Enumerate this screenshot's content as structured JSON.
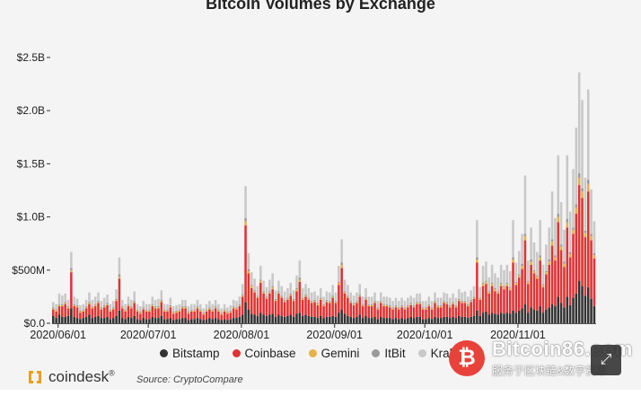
{
  "chart_data": {
    "type": "bar",
    "stacked": true,
    "title": "Bitcoin Volumes by Exchange",
    "ylabel": "",
    "xlabel": "",
    "ylim": [
      0,
      2.5
    ],
    "y_unit": "B",
    "y_ticks": [
      {
        "value": 0,
        "label": "$0.0"
      },
      {
        "value": 0.5,
        "label": "$500M"
      },
      {
        "value": 1.0,
        "label": "$1.0B"
      },
      {
        "value": 1.5,
        "label": "$1.5B"
      },
      {
        "value": 2.0,
        "label": "$2.0B"
      },
      {
        "value": 2.5,
        "label": "$2.5B"
      }
    ],
    "x_ticks": [
      {
        "day": 0,
        "label": "2020/06/01"
      },
      {
        "day": 30,
        "label": "2020/07/01"
      },
      {
        "day": 61,
        "label": "2020/08/01"
      },
      {
        "day": 92,
        "label": "2020/09/01"
      },
      {
        "day": 122,
        "label": "2020/10/01"
      },
      {
        "day": 153,
        "label": "2020/11/01"
      }
    ],
    "x_start_date": "2020-05-30",
    "legend_position": "bottom",
    "series": [
      {
        "name": "Bitstamp",
        "color": "#333333",
        "values": [
          0.07,
          0.05,
          0.08,
          0.06,
          0.06,
          0.07,
          0.14,
          0.06,
          0.05,
          0.04,
          0.05,
          0.06,
          0.08,
          0.05,
          0.06,
          0.07,
          0.05,
          0.05,
          0.06,
          0.04,
          0.05,
          0.07,
          0.12,
          0.05,
          0.04,
          0.06,
          0.05,
          0.07,
          0.04,
          0.03,
          0.05,
          0.04,
          0.04,
          0.06,
          0.05,
          0.05,
          0.07,
          0.04,
          0.04,
          0.05,
          0.03,
          0.04,
          0.04,
          0.05,
          0.05,
          0.03,
          0.04,
          0.04,
          0.05,
          0.04,
          0.03,
          0.04,
          0.05,
          0.04,
          0.05,
          0.04,
          0.03,
          0.04,
          0.03,
          0.04,
          0.05,
          0.05,
          0.06,
          0.08,
          0.2,
          0.13,
          0.09,
          0.08,
          0.07,
          0.1,
          0.08,
          0.07,
          0.08,
          0.09,
          0.06,
          0.08,
          0.07,
          0.06,
          0.07,
          0.08,
          0.06,
          0.09,
          0.1,
          0.07,
          0.08,
          0.07,
          0.06,
          0.06,
          0.05,
          0.07,
          0.05,
          0.06,
          0.06,
          0.07,
          0.06,
          0.1,
          0.13,
          0.09,
          0.07,
          0.06,
          0.05,
          0.06,
          0.08,
          0.05,
          0.07,
          0.05,
          0.05,
          0.06,
          0.04,
          0.06,
          0.05,
          0.05,
          0.05,
          0.04,
          0.05,
          0.04,
          0.05,
          0.04,
          0.05,
          0.06,
          0.05,
          0.06,
          0.06,
          0.04,
          0.04,
          0.05,
          0.04,
          0.06,
          0.05,
          0.05,
          0.06,
          0.06,
          0.05,
          0.06,
          0.05,
          0.07,
          0.06,
          0.06,
          0.05,
          0.06,
          0.07,
          0.12,
          0.07,
          0.1,
          0.11,
          0.08,
          0.1,
          0.09,
          0.08,
          0.1,
          0.09,
          0.1,
          0.09,
          0.12,
          0.1,
          0.12,
          0.14,
          0.18,
          0.1,
          0.15,
          0.13,
          0.12,
          0.16,
          0.1,
          0.13,
          0.15,
          0.18,
          0.16,
          0.25,
          0.19,
          0.15,
          0.25,
          0.17,
          0.24,
          0.28,
          0.4,
          0.35,
          0.26,
          0.34,
          0.23,
          0.16
        ]
      },
      {
        "name": "Coinbase",
        "color": "#e03333",
        "values": [
          0.06,
          0.06,
          0.08,
          0.1,
          0.12,
          0.07,
          0.34,
          0.1,
          0.1,
          0.06,
          0.06,
          0.08,
          0.1,
          0.09,
          0.1,
          0.12,
          0.08,
          0.1,
          0.11,
          0.07,
          0.08,
          0.14,
          0.3,
          0.09,
          0.07,
          0.1,
          0.09,
          0.12,
          0.07,
          0.06,
          0.08,
          0.07,
          0.07,
          0.1,
          0.09,
          0.09,
          0.13,
          0.07,
          0.07,
          0.1,
          0.06,
          0.06,
          0.07,
          0.09,
          0.09,
          0.06,
          0.07,
          0.07,
          0.09,
          0.07,
          0.05,
          0.07,
          0.08,
          0.07,
          0.09,
          0.07,
          0.05,
          0.07,
          0.06,
          0.06,
          0.09,
          0.08,
          0.1,
          0.17,
          0.72,
          0.34,
          0.24,
          0.21,
          0.17,
          0.28,
          0.2,
          0.16,
          0.2,
          0.23,
          0.15,
          0.2,
          0.17,
          0.14,
          0.15,
          0.18,
          0.15,
          0.21,
          0.29,
          0.15,
          0.17,
          0.15,
          0.13,
          0.14,
          0.12,
          0.15,
          0.11,
          0.14,
          0.13,
          0.17,
          0.13,
          0.26,
          0.39,
          0.19,
          0.17,
          0.13,
          0.12,
          0.13,
          0.17,
          0.11,
          0.15,
          0.11,
          0.11,
          0.13,
          0.09,
          0.13,
          0.11,
          0.11,
          0.1,
          0.09,
          0.1,
          0.09,
          0.1,
          0.09,
          0.1,
          0.11,
          0.1,
          0.12,
          0.12,
          0.09,
          0.09,
          0.11,
          0.09,
          0.13,
          0.1,
          0.1,
          0.13,
          0.12,
          0.1,
          0.12,
          0.1,
          0.14,
          0.13,
          0.13,
          0.11,
          0.14,
          0.16,
          0.45,
          0.15,
          0.25,
          0.26,
          0.2,
          0.25,
          0.21,
          0.2,
          0.25,
          0.23,
          0.25,
          0.22,
          0.45,
          0.26,
          0.31,
          0.37,
          0.6,
          0.27,
          0.4,
          0.34,
          0.3,
          0.43,
          0.24,
          0.33,
          0.4,
          0.55,
          0.43,
          0.7,
          0.5,
          0.38,
          0.65,
          0.45,
          0.6,
          0.75,
          0.9,
          0.83,
          0.55,
          0.9,
          0.55,
          0.45
        ]
      },
      {
        "name": "Gemini",
        "color": "#e8b04a",
        "values": [
          0.01,
          0.01,
          0.01,
          0.01,
          0.01,
          0.01,
          0.02,
          0.01,
          0.01,
          0.01,
          0.01,
          0.01,
          0.01,
          0.01,
          0.01,
          0.01,
          0.01,
          0.01,
          0.01,
          0.01,
          0.01,
          0.01,
          0.02,
          0.01,
          0.01,
          0.01,
          0.01,
          0.01,
          0.01,
          0.01,
          0.01,
          0.01,
          0.01,
          0.01,
          0.01,
          0.01,
          0.01,
          0.01,
          0.01,
          0.01,
          0.01,
          0.01,
          0.01,
          0.01,
          0.01,
          0.01,
          0.01,
          0.01,
          0.01,
          0.01,
          0.01,
          0.01,
          0.01,
          0.01,
          0.01,
          0.01,
          0.01,
          0.01,
          0.01,
          0.01,
          0.01,
          0.01,
          0.01,
          0.01,
          0.04,
          0.02,
          0.02,
          0.01,
          0.01,
          0.02,
          0.01,
          0.01,
          0.01,
          0.02,
          0.01,
          0.01,
          0.01,
          0.01,
          0.01,
          0.01,
          0.01,
          0.02,
          0.02,
          0.01,
          0.01,
          0.01,
          0.01,
          0.01,
          0.01,
          0.01,
          0.01,
          0.01,
          0.01,
          0.01,
          0.01,
          0.02,
          0.03,
          0.01,
          0.01,
          0.01,
          0.01,
          0.01,
          0.01,
          0.01,
          0.01,
          0.01,
          0.01,
          0.01,
          0.01,
          0.01,
          0.01,
          0.01,
          0.01,
          0.01,
          0.01,
          0.01,
          0.01,
          0.01,
          0.01,
          0.01,
          0.01,
          0.01,
          0.01,
          0.01,
          0.01,
          0.01,
          0.01,
          0.01,
          0.01,
          0.01,
          0.01,
          0.01,
          0.01,
          0.01,
          0.01,
          0.01,
          0.01,
          0.01,
          0.01,
          0.01,
          0.01,
          0.03,
          0.01,
          0.02,
          0.02,
          0.01,
          0.02,
          0.02,
          0.01,
          0.02,
          0.02,
          0.02,
          0.02,
          0.03,
          0.02,
          0.02,
          0.03,
          0.04,
          0.02,
          0.03,
          0.02,
          0.02,
          0.03,
          0.02,
          0.02,
          0.03,
          0.04,
          0.03,
          0.05,
          0.03,
          0.03,
          0.05,
          0.03,
          0.04,
          0.06,
          0.07,
          0.06,
          0.04,
          0.07,
          0.04,
          0.03
        ]
      },
      {
        "name": "ItBit",
        "color": "#9a9a9a",
        "values": [
          0.01,
          0.01,
          0.01,
          0.01,
          0.01,
          0.01,
          0.02,
          0.01,
          0.01,
          0.01,
          0.01,
          0.01,
          0.01,
          0.01,
          0.01,
          0.01,
          0.01,
          0.01,
          0.01,
          0.01,
          0.01,
          0.01,
          0.02,
          0.01,
          0.01,
          0.01,
          0.01,
          0.01,
          0.01,
          0.01,
          0.01,
          0.01,
          0.01,
          0.01,
          0.01,
          0.01,
          0.01,
          0.01,
          0.01,
          0.01,
          0.01,
          0.01,
          0.01,
          0.01,
          0.01,
          0.01,
          0.01,
          0.01,
          0.01,
          0.01,
          0.01,
          0.01,
          0.01,
          0.01,
          0.01,
          0.01,
          0.01,
          0.01,
          0.01,
          0.01,
          0.01,
          0.01,
          0.01,
          0.01,
          0.03,
          0.02,
          0.01,
          0.01,
          0.01,
          0.01,
          0.01,
          0.01,
          0.01,
          0.01,
          0.01,
          0.01,
          0.01,
          0.01,
          0.01,
          0.01,
          0.01,
          0.01,
          0.02,
          0.01,
          0.01,
          0.01,
          0.01,
          0.01,
          0.01,
          0.01,
          0.01,
          0.01,
          0.01,
          0.01,
          0.01,
          0.01,
          0.02,
          0.01,
          0.01,
          0.01,
          0.01,
          0.01,
          0.01,
          0.01,
          0.01,
          0.01,
          0.01,
          0.01,
          0.01,
          0.01,
          0.01,
          0.01,
          0.01,
          0.01,
          0.01,
          0.01,
          0.01,
          0.01,
          0.01,
          0.01,
          0.01,
          0.01,
          0.01,
          0.01,
          0.01,
          0.01,
          0.01,
          0.01,
          0.01,
          0.01,
          0.01,
          0.01,
          0.01,
          0.01,
          0.01,
          0.01,
          0.01,
          0.01,
          0.01,
          0.01,
          0.01,
          0.02,
          0.01,
          0.01,
          0.01,
          0.01,
          0.01,
          0.01,
          0.01,
          0.01,
          0.01,
          0.01,
          0.01,
          0.02,
          0.01,
          0.01,
          0.02,
          0.02,
          0.01,
          0.02,
          0.01,
          0.01,
          0.02,
          0.01,
          0.01,
          0.02,
          0.02,
          0.02,
          0.03,
          0.02,
          0.02,
          0.03,
          0.02,
          0.02,
          0.03,
          0.04,
          0.03,
          0.02,
          0.04,
          0.02,
          0.02
        ]
      },
      {
        "name": "Kraken",
        "color": "#c8c8c8",
        "values": [
          0.05,
          0.05,
          0.1,
          0.08,
          0.08,
          0.06,
          0.15,
          0.07,
          0.06,
          0.05,
          0.05,
          0.06,
          0.09,
          0.06,
          0.07,
          0.08,
          0.06,
          0.07,
          0.08,
          0.05,
          0.06,
          0.09,
          0.16,
          0.06,
          0.05,
          0.07,
          0.06,
          0.09,
          0.05,
          0.05,
          0.06,
          0.05,
          0.05,
          0.07,
          0.06,
          0.07,
          0.09,
          0.05,
          0.05,
          0.07,
          0.05,
          0.05,
          0.05,
          0.06,
          0.06,
          0.05,
          0.05,
          0.05,
          0.06,
          0.05,
          0.04,
          0.05,
          0.06,
          0.05,
          0.06,
          0.05,
          0.04,
          0.05,
          0.04,
          0.05,
          0.06,
          0.06,
          0.07,
          0.1,
          0.3,
          0.15,
          0.12,
          0.11,
          0.09,
          0.13,
          0.1,
          0.09,
          0.11,
          0.12,
          0.08,
          0.1,
          0.09,
          0.08,
          0.09,
          0.1,
          0.08,
          0.12,
          0.16,
          0.09,
          0.1,
          0.09,
          0.08,
          0.08,
          0.07,
          0.09,
          0.07,
          0.08,
          0.08,
          0.1,
          0.08,
          0.15,
          0.22,
          0.11,
          0.1,
          0.08,
          0.07,
          0.08,
          0.1,
          0.07,
          0.09,
          0.07,
          0.07,
          0.08,
          0.06,
          0.08,
          0.07,
          0.07,
          0.07,
          0.06,
          0.07,
          0.06,
          0.07,
          0.06,
          0.07,
          0.07,
          0.07,
          0.08,
          0.08,
          0.06,
          0.06,
          0.07,
          0.06,
          0.08,
          0.07,
          0.07,
          0.08,
          0.08,
          0.07,
          0.08,
          0.07,
          0.09,
          0.08,
          0.09,
          0.07,
          0.09,
          0.1,
          0.35,
          0.1,
          0.16,
          0.18,
          0.13,
          0.17,
          0.14,
          0.13,
          0.17,
          0.15,
          0.17,
          0.15,
          0.35,
          0.18,
          0.22,
          0.28,
          0.55,
          0.19,
          0.3,
          0.26,
          0.22,
          0.33,
          0.18,
          0.25,
          0.3,
          0.45,
          0.35,
          0.55,
          0.4,
          0.3,
          0.6,
          0.38,
          0.55,
          0.72,
          0.95,
          0.83,
          0.5,
          0.85,
          0.42,
          0.3
        ]
      }
    ]
  },
  "legend": {
    "items": [
      {
        "label": "Bitstamp",
        "color": "#333333"
      },
      {
        "label": "Coinbase",
        "color": "#e03333"
      },
      {
        "label": "Gemini",
        "color": "#e8b04a"
      },
      {
        "label": "ItBit",
        "color": "#9a9a9a"
      },
      {
        "label": "Kraken",
        "color": "#c8c8c8"
      }
    ]
  },
  "footer": {
    "brand": "coindesk",
    "brand_mark": "®",
    "source": "Source: CryptoCompare"
  },
  "watermark": {
    "coin_symbol": "₿",
    "brand": "Bitcoin86.com",
    "sub": "服务于区块链&数字货币"
  },
  "controls": {
    "expand_icon": "⤢"
  },
  "colors": {
    "background": "#f4f4f4",
    "accent_orange": "#e8a020"
  }
}
